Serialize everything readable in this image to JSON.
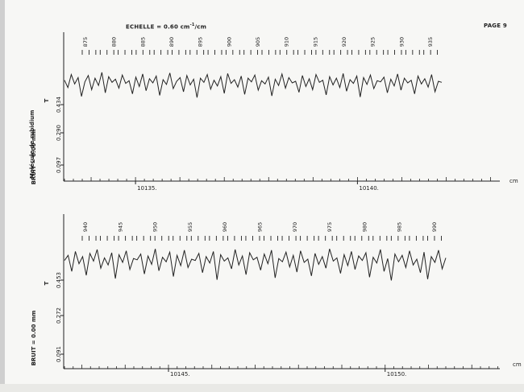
{
  "header": {
    "scale_label": "ECHELLE = 0.60 cm",
    "scale_sup": "-1",
    "scale_unit": "/cm",
    "page_label": "PAGE 9"
  },
  "side": {
    "molecule_label": "Molécule de rubidium"
  },
  "colors": {
    "ink": "#222222",
    "paper": "#f7f7f5"
  },
  "chart_data": [
    {
      "type": "line",
      "noise_label": "BRUIT = 0.00 mm",
      "trans_label": "T",
      "x_unit_label": "cm",
      "xlim": [
        10133.4,
        10141.9
      ],
      "x_tick_labels": [
        {
          "value": 10135,
          "label": "10135."
        },
        {
          "value": 10140,
          "label": "10140."
        }
      ],
      "y_tick_labels": [
        "0.434",
        "0.290",
        "0.097"
      ],
      "line_numbers": [
        "875",
        "880",
        "885",
        "890",
        "895",
        "900",
        "905",
        "910",
        "915",
        "920",
        "925",
        "930",
        "935"
      ],
      "series": [
        {
          "values": [
            0.62,
            0.48,
            0.73,
            0.55,
            0.67,
            0.31,
            0.59,
            0.71,
            0.44,
            0.66,
            0.52,
            0.77,
            0.38,
            0.69,
            0.58,
            0.64,
            0.47,
            0.72,
            0.56,
            0.61,
            0.36,
            0.68,
            0.5,
            0.74,
            0.42,
            0.65,
            0.57,
            0.7,
            0.33,
            0.63,
            0.54,
            0.76,
            0.46,
            0.6,
            0.67,
            0.4,
            0.71,
            0.53,
            0.64,
            0.29,
            0.66,
            0.58,
            0.73,
            0.45,
            0.62,
            0.51,
            0.69,
            0.37,
            0.75,
            0.56,
            0.63,
            0.49,
            0.7,
            0.35,
            0.66,
            0.59,
            0.72,
            0.43,
            0.61,
            0.55,
            0.68,
            0.32,
            0.64,
            0.52,
            0.74,
            0.47,
            0.67,
            0.57,
            0.6,
            0.39,
            0.71,
            0.5,
            0.65,
            0.44,
            0.73,
            0.58,
            0.62,
            0.34,
            0.69,
            0.53,
            0.66,
            0.48,
            0.75,
            0.41,
            0.63,
            0.56,
            0.7,
            0.3,
            0.67,
            0.54,
            0.72,
            0.46,
            0.61,
            0.59,
            0.68,
            0.38,
            0.64,
            0.51,
            0.74,
            0.43,
            0.66,
            0.57,
            0.62,
            0.36,
            0.7,
            0.55,
            0.65,
            0.49,
            0.73,
            0.4,
            0.6,
            0.58
          ]
        }
      ]
    },
    {
      "type": "line",
      "noise_label": "BRUIT = 0.00 mm",
      "trans_label": "T",
      "x_unit_label": "cm",
      "xlim": [
        10142.6,
        10151.4
      ],
      "x_tick_labels": [
        {
          "value": 10145,
          "label": "10145."
        },
        {
          "value": 10150,
          "label": "10150."
        }
      ],
      "y_tick_labels": [
        "0.453",
        "0.272",
        "0.091"
      ],
      "line_numbers": [
        "940",
        "945",
        "950",
        "955",
        "960",
        "965",
        "970",
        "975",
        "980",
        "985",
        "990"
      ],
      "series": [
        {
          "values": [
            0.58,
            0.66,
            0.41,
            0.72,
            0.53,
            0.64,
            0.35,
            0.69,
            0.57,
            0.75,
            0.46,
            0.62,
            0.51,
            0.7,
            0.3,
            0.67,
            0.55,
            0.73,
            0.44,
            0.61,
            0.59,
            0.68,
            0.37,
            0.65,
            0.52,
            0.76,
            0.42,
            0.63,
            0.56,
            0.71,
            0.33,
            0.66,
            0.5,
            0.74,
            0.47,
            0.6,
            0.58,
            0.69,
            0.39,
            0.64,
            0.54,
            0.72,
            0.28,
            0.67,
            0.57,
            0.62,
            0.45,
            0.75,
            0.51,
            0.65,
            0.36,
            0.7,
            0.59,
            0.63,
            0.43,
            0.68,
            0.53,
            0.74,
            0.31,
            0.61,
            0.56,
            0.71,
            0.48,
            0.66,
            0.4,
            0.73,
            0.55,
            0.6,
            0.34,
            0.69,
            0.52,
            0.64,
            0.46,
            0.76,
            0.57,
            0.62,
            0.38,
            0.67,
            0.5,
            0.72,
            0.44,
            0.65,
            0.58,
            0.7,
            0.32,
            0.63,
            0.54,
            0.75,
            0.41,
            0.61,
            0.27,
            0.68,
            0.56,
            0.66,
            0.47,
            0.73,
            0.51,
            0.6,
            0.39,
            0.71,
            0.29,
            0.64,
            0.55,
            0.74,
            0.45,
            0.62
          ]
        }
      ]
    }
  ]
}
